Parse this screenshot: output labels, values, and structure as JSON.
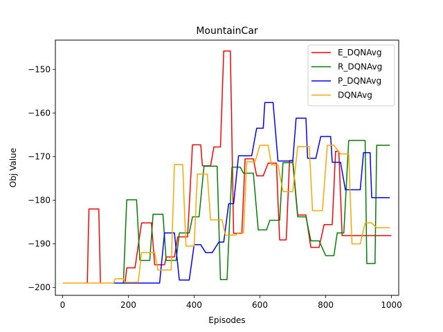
{
  "chart_data": {
    "type": "line",
    "title": "MountainCar",
    "xlabel": "Episodes",
    "ylabel": "Obj Value",
    "xlim": [
      -22,
      1022
    ],
    "ylim": [
      -201.8,
      -143.3
    ],
    "xticks": [
      0,
      200,
      400,
      600,
      800,
      1000
    ],
    "yticks": [
      -200,
      -190,
      -180,
      -170,
      -160,
      -150
    ],
    "grid": false,
    "legend_position": "top-right",
    "series": [
      {
        "name": "E_DQNAvg",
        "color": "#ff0000",
        "x": [
          0,
          75,
          80,
          110,
          115,
          190,
          195,
          220,
          240,
          270,
          280,
          310,
          315,
          340,
          350,
          380,
          395,
          420,
          425,
          450,
          460,
          480,
          490,
          510,
          520,
          545,
          555,
          580,
          590,
          610,
          625,
          650,
          660,
          680,
          690,
          700,
          715,
          740,
          755,
          780,
          795,
          820,
          830,
          840,
          850,
          880,
          890,
          910,
          915,
          935,
          945,
          960,
          975,
          1000
        ],
        "y": [
          -199,
          -199,
          -182,
          -182,
          -199,
          -199,
          -195.5,
          -195.5,
          -185.2,
          -185.2,
          -194.8,
          -194.8,
          -193,
          -193,
          -188.4,
          -188.4,
          -167.3,
          -167.3,
          -172.1,
          -172.1,
          -167.8,
          -167.8,
          -145.8,
          -145.8,
          -187.6,
          -187.6,
          -170.5,
          -170.5,
          -174.4,
          -174.4,
          -171.5,
          -171.5,
          -189.1,
          -189.1,
          -170.9,
          -170.9,
          -183.4,
          -183.4,
          -190.8,
          -190.8,
          -185.6,
          -185.6,
          -168.8,
          -168.8,
          -188.1,
          -188.1,
          -188.1,
          -188.1,
          -188.1,
          -188.1,
          -188.1,
          -188.1,
          -188.1,
          -188.1
        ]
      },
      {
        "name": "R_DQNAvg",
        "color": "#008000",
        "x": [
          0,
          185,
          195,
          225,
          235,
          265,
          275,
          305,
          315,
          345,
          355,
          385,
          395,
          415,
          430,
          470,
          480,
          500,
          515,
          540,
          550,
          580,
          595,
          620,
          630,
          660,
          670,
          700,
          715,
          740,
          755,
          780,
          800,
          825,
          835,
          855,
          870,
          890,
          895,
          920,
          925,
          950,
          955,
          975,
          995
        ],
        "y": [
          -199,
          -199,
          -179.9,
          -179.9,
          -193.8,
          -193.8,
          -183.2,
          -183.2,
          -193.8,
          -193.8,
          -187.5,
          -187.5,
          -183.8,
          -183.8,
          -172.2,
          -172.2,
          -198.2,
          -198.2,
          -172.4,
          -172.4,
          -173.8,
          -173.8,
          -186.8,
          -186.8,
          -184.6,
          -184.6,
          -171.4,
          -171.4,
          -183.8,
          -183.8,
          -189.3,
          -189.3,
          -192.7,
          -192.7,
          -187.5,
          -187.5,
          -166.3,
          -166.3,
          -166.3,
          -166.3,
          -194.5,
          -194.5,
          -167.4,
          -167.4,
          -167.4
        ]
      },
      {
        "name": "P_DQNAvg",
        "color": "#0000ff",
        "x": [
          0,
          180,
          190,
          295,
          310,
          340,
          355,
          385,
          400,
          420,
          435,
          455,
          475,
          490,
          505,
          520,
          535,
          550,
          555,
          575,
          590,
          610,
          615,
          640,
          655,
          670,
          675,
          700,
          710,
          740,
          745,
          770,
          785,
          815,
          820,
          845,
          860,
          875,
          885,
          905,
          915,
          935,
          940,
          965,
          995
        ],
        "y": [
          -199,
          -199,
          -199,
          -199,
          -187.5,
          -187.5,
          -198.3,
          -198.3,
          -190.2,
          -190.2,
          -192,
          -192,
          -189.6,
          -189.6,
          -180.8,
          -180.8,
          -169.8,
          -169.8,
          -169.8,
          -169.8,
          -163.5,
          -163.5,
          -157.6,
          -157.6,
          -171,
          -171,
          -171,
          -171,
          -161.2,
          -161.2,
          -170.4,
          -170.4,
          -165.4,
          -165.4,
          -171.3,
          -171.3,
          -177.6,
          -177.6,
          -177.6,
          -177.6,
          -169.1,
          -169.1,
          -179.4,
          -179.4,
          -179.4
        ]
      },
      {
        "name": "DQNAvg",
        "color": "#ffa500",
        "x": [
          0,
          155,
          160,
          185,
          190,
          230,
          240,
          280,
          290,
          330,
          340,
          365,
          375,
          400,
          410,
          440,
          450,
          485,
          495,
          525,
          535,
          550,
          560,
          585,
          600,
          625,
          635,
          655,
          670,
          700,
          715,
          750,
          760,
          790,
          805,
          825,
          845,
          870,
          880,
          905,
          920,
          940,
          955,
          995
        ],
        "y": [
          -199,
          -199,
          -198,
          -198,
          -198.8,
          -198.8,
          -192,
          -192,
          -196,
          -196,
          -171.8,
          -171.8,
          -190.5,
          -190.5,
          -174,
          -174,
          -184.5,
          -184.5,
          -188,
          -188,
          -187.5,
          -187.5,
          -171.2,
          -171.2,
          -167.4,
          -167.4,
          -171.9,
          -171.9,
          -178,
          -178,
          -167.7,
          -167.7,
          -182.4,
          -182.4,
          -167.4,
          -167.4,
          -169.4,
          -169.4,
          -190,
          -190,
          -185.2,
          -185.2,
          -186.3,
          -186.3
        ]
      }
    ]
  }
}
